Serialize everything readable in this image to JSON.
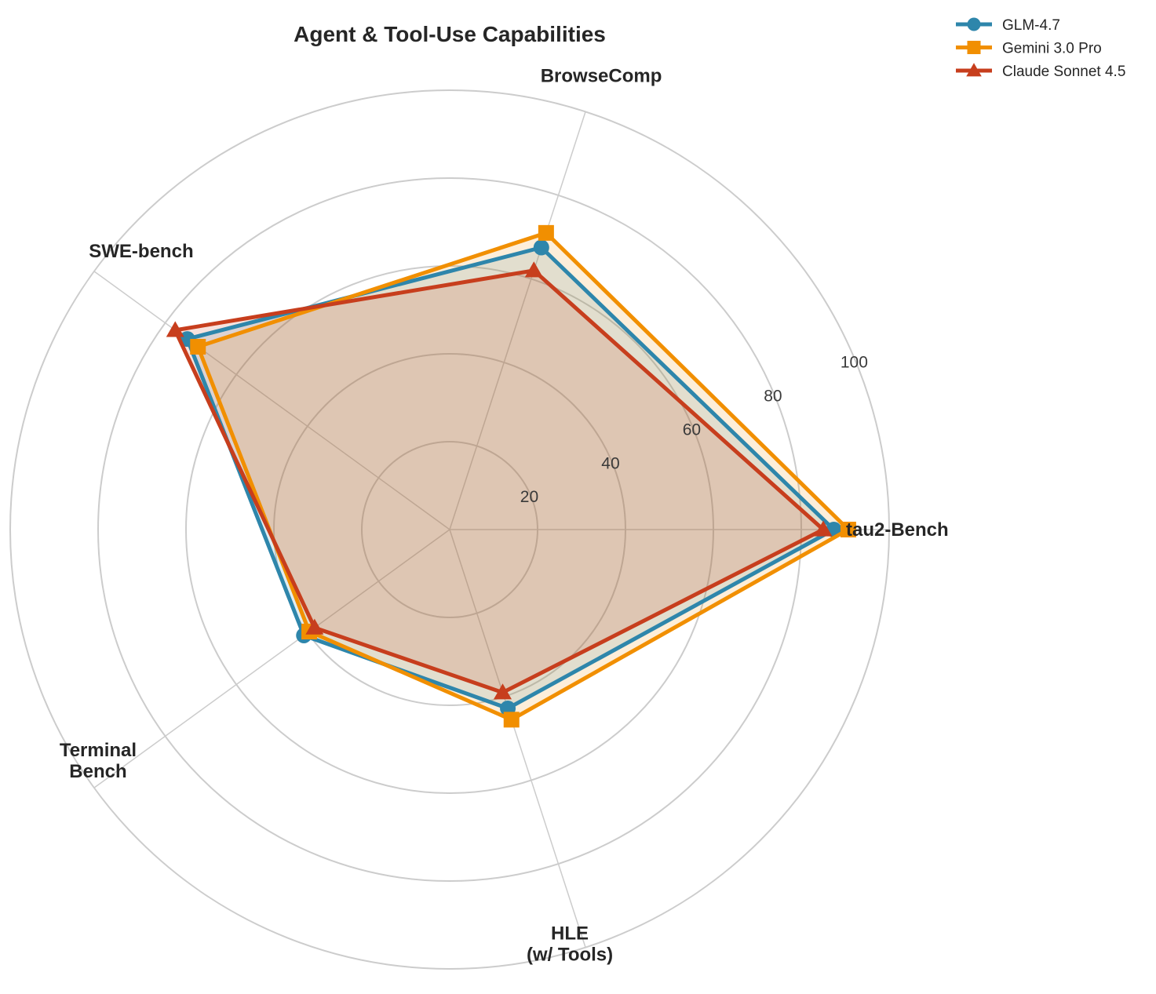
{
  "chart_data": {
    "type": "radar",
    "title": "Agent & Tool-Use Capabilities",
    "axes": [
      "tau2-Bench",
      "BrowseComp",
      "SWE-bench",
      "Terminal\nBench",
      "HLE\n(w/ Tools)"
    ],
    "rlim": [
      0,
      100
    ],
    "rticks": [
      20,
      40,
      60,
      80,
      100
    ],
    "grid": true,
    "legend_position": "top-right",
    "series": [
      {
        "name": "GLM-4.7",
        "values": [
          87.4,
          67.5,
          73.8,
          41.0,
          42.8
        ],
        "color": "#2e86ab",
        "marker": "circle"
      },
      {
        "name": "Gemini 3.0 Pro",
        "values": [
          90.7,
          71.0,
          70.8,
          39.5,
          45.5
        ],
        "color": "#f18f01",
        "marker": "square"
      },
      {
        "name": "Claude Sonnet 4.5",
        "values": [
          85.0,
          62.0,
          77.2,
          38.0,
          39.0
        ],
        "color": "#c73e1d",
        "marker": "triangle"
      }
    ]
  }
}
